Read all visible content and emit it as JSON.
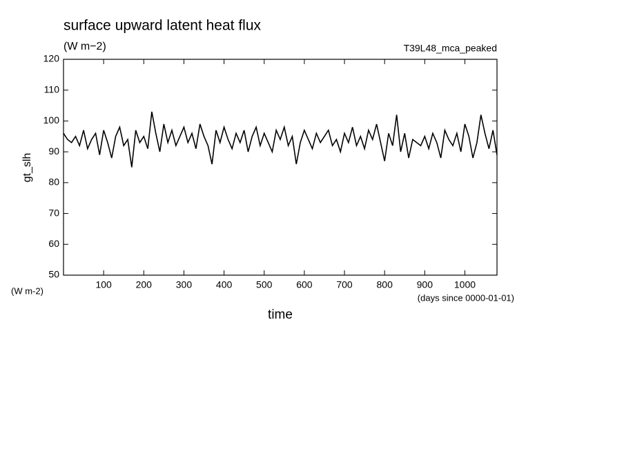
{
  "chart_data": {
    "type": "line",
    "title": "surface upward latent heat flux",
    "subtitle": "(W m−2)",
    "annotation": "T39L48_mca_peaked",
    "ylabel": "gt_slh",
    "yunit": "(W m-2)",
    "xunit": "(days since 0000-01-01)",
    "xlabel": "time",
    "x": [
      0,
      10,
      20,
      30,
      40,
      50,
      60,
      70,
      80,
      90,
      100,
      110,
      120,
      130,
      140,
      150,
      160,
      170,
      180,
      190,
      200,
      210,
      220,
      230,
      240,
      250,
      260,
      270,
      280,
      290,
      300,
      310,
      320,
      330,
      340,
      350,
      360,
      370,
      380,
      390,
      400,
      410,
      420,
      430,
      440,
      450,
      460,
      470,
      480,
      490,
      500,
      510,
      520,
      530,
      540,
      550,
      560,
      570,
      580,
      590,
      600,
      610,
      620,
      630,
      640,
      650,
      660,
      670,
      680,
      690,
      700,
      710,
      720,
      730,
      740,
      750,
      760,
      770,
      780,
      790,
      800,
      810,
      820,
      830,
      840,
      850,
      860,
      870,
      880,
      890,
      900,
      910,
      920,
      930,
      940,
      950,
      960,
      970,
      980,
      990,
      1000,
      1010,
      1020,
      1030,
      1040,
      1050,
      1060,
      1070,
      1080
    ],
    "series": [
      {
        "name": "gt_slh",
        "color": "#000000",
        "values": [
          96,
          94,
          93,
          95,
          92,
          97,
          91,
          94,
          96,
          89,
          97,
          93,
          88,
          95,
          98,
          92,
          94,
          85,
          97,
          93,
          95,
          91,
          103,
          96,
          90,
          99,
          93,
          97,
          92,
          95,
          98,
          93,
          96,
          91,
          99,
          95,
          92,
          86,
          97,
          93,
          98,
          94,
          91,
          96,
          93,
          97,
          90,
          95,
          98,
          92,
          96,
          93,
          90,
          97,
          94,
          98,
          92,
          95,
          86,
          93,
          97,
          94,
          91,
          96,
          93,
          95,
          97,
          92,
          94,
          90,
          96,
          93,
          98,
          92,
          95,
          91,
          97,
          94,
          99,
          93,
          87,
          96,
          92,
          102,
          90,
          96,
          88,
          94,
          93,
          92,
          95,
          91,
          96,
          93,
          88,
          97,
          94,
          92,
          96,
          90,
          99,
          95,
          88,
          93,
          102,
          96,
          91,
          97,
          89
        ]
      }
    ],
    "xlim": [
      0,
      1080
    ],
    "ylim": [
      50,
      120
    ],
    "xticks": [
      100,
      200,
      300,
      400,
      500,
      600,
      700,
      800,
      900,
      1000
    ],
    "yticks": [
      50,
      60,
      70,
      80,
      90,
      100,
      110,
      120
    ]
  }
}
